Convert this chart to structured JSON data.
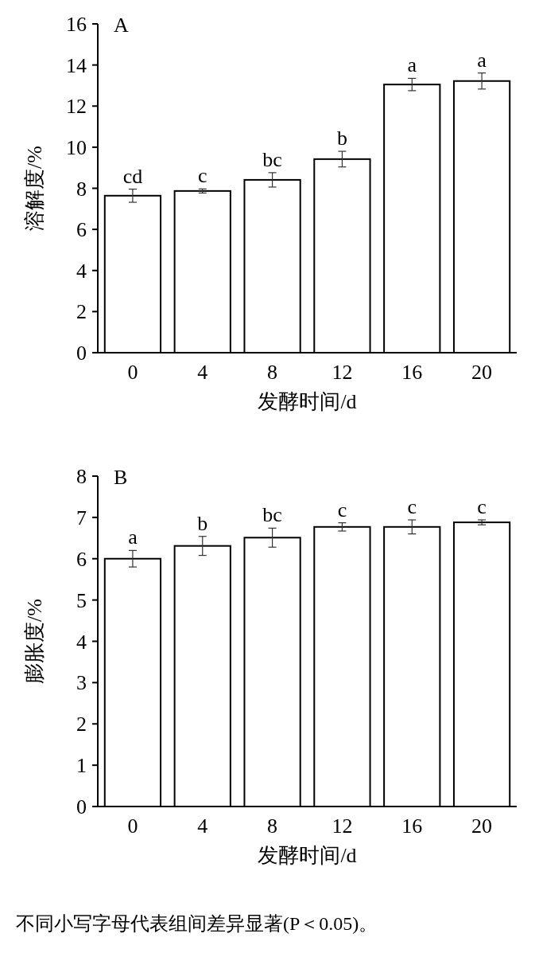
{
  "chart_data": [
    {
      "type": "bar",
      "title": "A",
      "categories": [
        "0",
        "4",
        "8",
        "12",
        "16",
        "20"
      ],
      "xlabel": "发酵时间/d",
      "ylabel": "溶解度/%",
      "ylim": [
        0,
        16
      ],
      "yticks": [
        0,
        2,
        4,
        6,
        8,
        10,
        12,
        14,
        16
      ],
      "grid": false,
      "series": [
        {
          "color": "#ffffff",
          "values": [
            7.64,
            7.87,
            8.41,
            9.42,
            13.05,
            13.22
          ],
          "errors": [
            0.32,
            0.1,
            0.35,
            0.38,
            0.3,
            0.39
          ],
          "value_labels": [
            "cd",
            "c",
            "bc",
            "b",
            "a",
            "a"
          ]
        }
      ]
    },
    {
      "type": "bar",
      "title": "B",
      "categories": [
        "0",
        "4",
        "8",
        "12",
        "16",
        "20"
      ],
      "xlabel": "发酵时间/d",
      "ylabel": "膨胀度/%",
      "ylim": [
        0,
        8
      ],
      "yticks": [
        0,
        1,
        2,
        3,
        4,
        5,
        6,
        7,
        8
      ],
      "grid": false,
      "series": [
        {
          "color": "#ffffff",
          "values": [
            6.0,
            6.31,
            6.51,
            6.77,
            6.77,
            6.88
          ],
          "errors": [
            0.2,
            0.23,
            0.23,
            0.1,
            0.17,
            0.06
          ],
          "value_labels": [
            "a",
            "b",
            "bc",
            "c",
            "c",
            "c"
          ]
        }
      ],
      "annotations": [
        "不同小写字母代表组间差异显著(P＜0.05)。"
      ]
    }
  ]
}
